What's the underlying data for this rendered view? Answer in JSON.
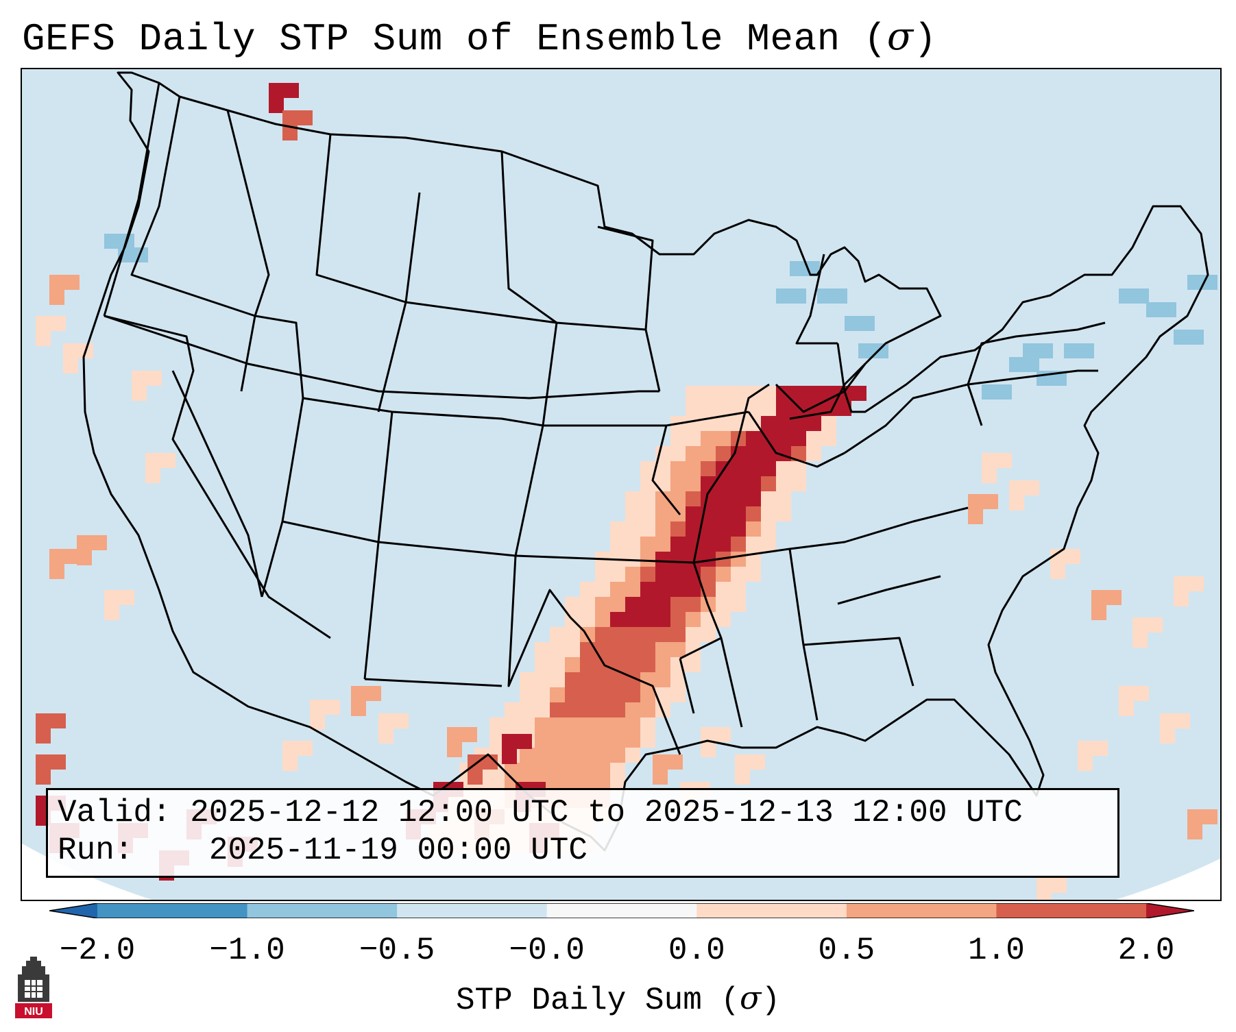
{
  "title": {
    "text": "GEFS Daily STP Sum of Ensemble Mean (",
    "symbol": "σ",
    "close": ")"
  },
  "info": {
    "valid_label": "Valid:",
    "valid_value": "2025-12-12 12:00 UTC to 2025-12-13 12:00 UTC",
    "run_label": "Run:",
    "run_value": "2025-11-19 00:00 UTC"
  },
  "colorbar": {
    "label": "STP Daily Sum (",
    "symbol": "σ",
    "close": ")",
    "ticks": [
      "−2.0",
      "−1.0",
      "−0.5",
      "−0.0",
      "0.0",
      "0.5",
      "1.0",
      "2.0"
    ],
    "colors": [
      "#2166ac",
      "#4393c3",
      "#92c5de",
      "#d1e5f0",
      "#f7f7f7",
      "#fddbc7",
      "#f4a582",
      "#d6604d",
      "#b2182b"
    ],
    "extend": "both"
  },
  "map": {
    "region": "Continental United States",
    "background_color": "#d1e5f0",
    "max_color": "#b2182b",
    "high_color": "#d6604d",
    "mid_color": "#f4a582",
    "low_color": "#fddbc7",
    "neg_color": "#92c5de"
  },
  "logo": {
    "text": "NIU"
  }
}
